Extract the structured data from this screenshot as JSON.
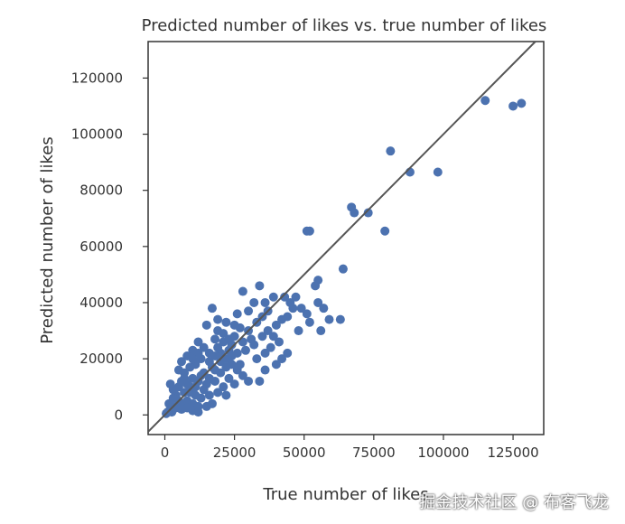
{
  "chart_data": {
    "type": "scatter",
    "title": "Predicted number of likes vs. true number of likes",
    "xlabel": "True number of likes",
    "ylabel": "Predicted number of likes",
    "xlim": [
      -6000,
      136000
    ],
    "ylim": [
      -7000,
      133000
    ],
    "x_ticks": [
      0,
      25000,
      50000,
      75000,
      100000,
      125000
    ],
    "y_ticks": [
      0,
      20000,
      40000,
      60000,
      80000,
      100000,
      120000
    ],
    "x_tick_labels": [
      "0",
      "25000",
      "50000",
      "75000",
      "100000",
      "125000"
    ],
    "y_tick_labels": [
      "0",
      "20000",
      "40000",
      "60000",
      "80000",
      "100000",
      "120000"
    ],
    "reference_line": "y = x",
    "grid": false,
    "point_color": "#4c72b0",
    "line_color": "#555555",
    "series": [
      {
        "points": [
          [
            115000,
            112000
          ],
          [
            125000,
            110000
          ],
          [
            128000,
            111000
          ],
          [
            81000,
            94000
          ],
          [
            88000,
            86500
          ],
          [
            98000,
            86500
          ],
          [
            67000,
            74000
          ],
          [
            68000,
            72000
          ],
          [
            73000,
            72000
          ],
          [
            79000,
            65500
          ],
          [
            51000,
            65500
          ],
          [
            52000,
            65500
          ],
          [
            64000,
            52000
          ],
          [
            55000,
            48000
          ],
          [
            54000,
            46000
          ],
          [
            47000,
            42000
          ],
          [
            43000,
            42000
          ],
          [
            39000,
            42000
          ],
          [
            36000,
            40000
          ],
          [
            55000,
            40000
          ],
          [
            57000,
            38000
          ],
          [
            51000,
            36000
          ],
          [
            63000,
            34000
          ],
          [
            59000,
            34000
          ],
          [
            48000,
            30000
          ],
          [
            42000,
            34000
          ],
          [
            40000,
            32000
          ],
          [
            44000,
            35000
          ],
          [
            46000,
            38000
          ],
          [
            34000,
            46000
          ],
          [
            32000,
            40000
          ],
          [
            28000,
            44000
          ],
          [
            30000,
            37000
          ],
          [
            26000,
            36000
          ],
          [
            17000,
            38000
          ],
          [
            19000,
            34000
          ],
          [
            22000,
            33000
          ],
          [
            15000,
            32000
          ],
          [
            31000,
            27000
          ],
          [
            38000,
            24000
          ],
          [
            42000,
            20000
          ],
          [
            44000,
            22000
          ],
          [
            40000,
            18000
          ],
          [
            36000,
            16000
          ],
          [
            33000,
            20000
          ],
          [
            28000,
            26000
          ],
          [
            25000,
            28000
          ],
          [
            24000,
            25000
          ],
          [
            21000,
            29000
          ],
          [
            18000,
            27000
          ],
          [
            12000,
            26000
          ],
          [
            10000,
            23000
          ],
          [
            8000,
            21000
          ],
          [
            20000,
            22000
          ],
          [
            22000,
            20000
          ],
          [
            24000,
            18000
          ],
          [
            26000,
            16000
          ],
          [
            28000,
            14000
          ],
          [
            30000,
            12000
          ],
          [
            27000,
            18000
          ],
          [
            23000,
            23000
          ],
          [
            19000,
            24000
          ],
          [
            16000,
            22000
          ],
          [
            13000,
            20000
          ],
          [
            11000,
            18000
          ],
          [
            9000,
            17000
          ],
          [
            7000,
            15000
          ],
          [
            14000,
            15000
          ],
          [
            17000,
            17000
          ],
          [
            20000,
            15000
          ],
          [
            23000,
            13000
          ],
          [
            25000,
            11000
          ],
          [
            21000,
            10000
          ],
          [
            18000,
            12000
          ],
          [
            15000,
            11000
          ],
          [
            12000,
            12000
          ],
          [
            10000,
            13000
          ],
          [
            8000,
            11000
          ],
          [
            6000,
            12000
          ],
          [
            5000,
            10000
          ],
          [
            7000,
            8000
          ],
          [
            9000,
            8000
          ],
          [
            11000,
            7000
          ],
          [
            13000,
            6000
          ],
          [
            16000,
            7000
          ],
          [
            19000,
            8000
          ],
          [
            22000,
            7000
          ],
          [
            14000,
            9000
          ],
          [
            4000,
            7000
          ],
          [
            3000,
            6000
          ],
          [
            5000,
            5000
          ],
          [
            6000,
            4000
          ],
          [
            8000,
            5000
          ],
          [
            10000,
            4000
          ],
          [
            12000,
            3000
          ],
          [
            3000,
            3000
          ],
          [
            2000,
            2000
          ],
          [
            4000,
            2500
          ],
          [
            1500,
            4000
          ],
          [
            2500,
            1000
          ],
          [
            1000,
            1000
          ],
          [
            500,
            500
          ],
          [
            6000,
            2000
          ],
          [
            8000,
            2500
          ],
          [
            10000,
            1500
          ],
          [
            12000,
            1000
          ],
          [
            15000,
            3000
          ],
          [
            17000,
            4000
          ],
          [
            9000,
            10000
          ],
          [
            11000,
            10000
          ],
          [
            13000,
            14000
          ],
          [
            16000,
            13000
          ],
          [
            18000,
            16000
          ],
          [
            20000,
            19000
          ],
          [
            22000,
            17000
          ],
          [
            24000,
            21000
          ],
          [
            26000,
            22000
          ],
          [
            29000,
            23000
          ],
          [
            32000,
            25000
          ],
          [
            35000,
            28000
          ],
          [
            37000,
            30000
          ],
          [
            39000,
            28000
          ],
          [
            41000,
            26000
          ],
          [
            30000,
            30000
          ],
          [
            27000,
            31000
          ],
          [
            33000,
            33000
          ],
          [
            35000,
            35000
          ],
          [
            37000,
            37000
          ],
          [
            5000,
            16000
          ],
          [
            6000,
            19000
          ],
          [
            7000,
            13000
          ],
          [
            3000,
            9000
          ],
          [
            2000,
            11000
          ],
          [
            45000,
            40000
          ],
          [
            49000,
            38000
          ],
          [
            52000,
            33000
          ],
          [
            56000,
            30000
          ],
          [
            34000,
            12000
          ],
          [
            36000,
            22000
          ],
          [
            25000,
            32000
          ],
          [
            21000,
            26000
          ],
          [
            19000,
            30000
          ],
          [
            14000,
            24000
          ],
          [
            12000,
            22000
          ],
          [
            10000,
            20000
          ],
          [
            16000,
            19000
          ],
          [
            18000,
            21000
          ],
          [
            23000,
            27000
          ]
        ]
      }
    ]
  },
  "watermark": "掘金技术社区 @ 布客飞龙"
}
